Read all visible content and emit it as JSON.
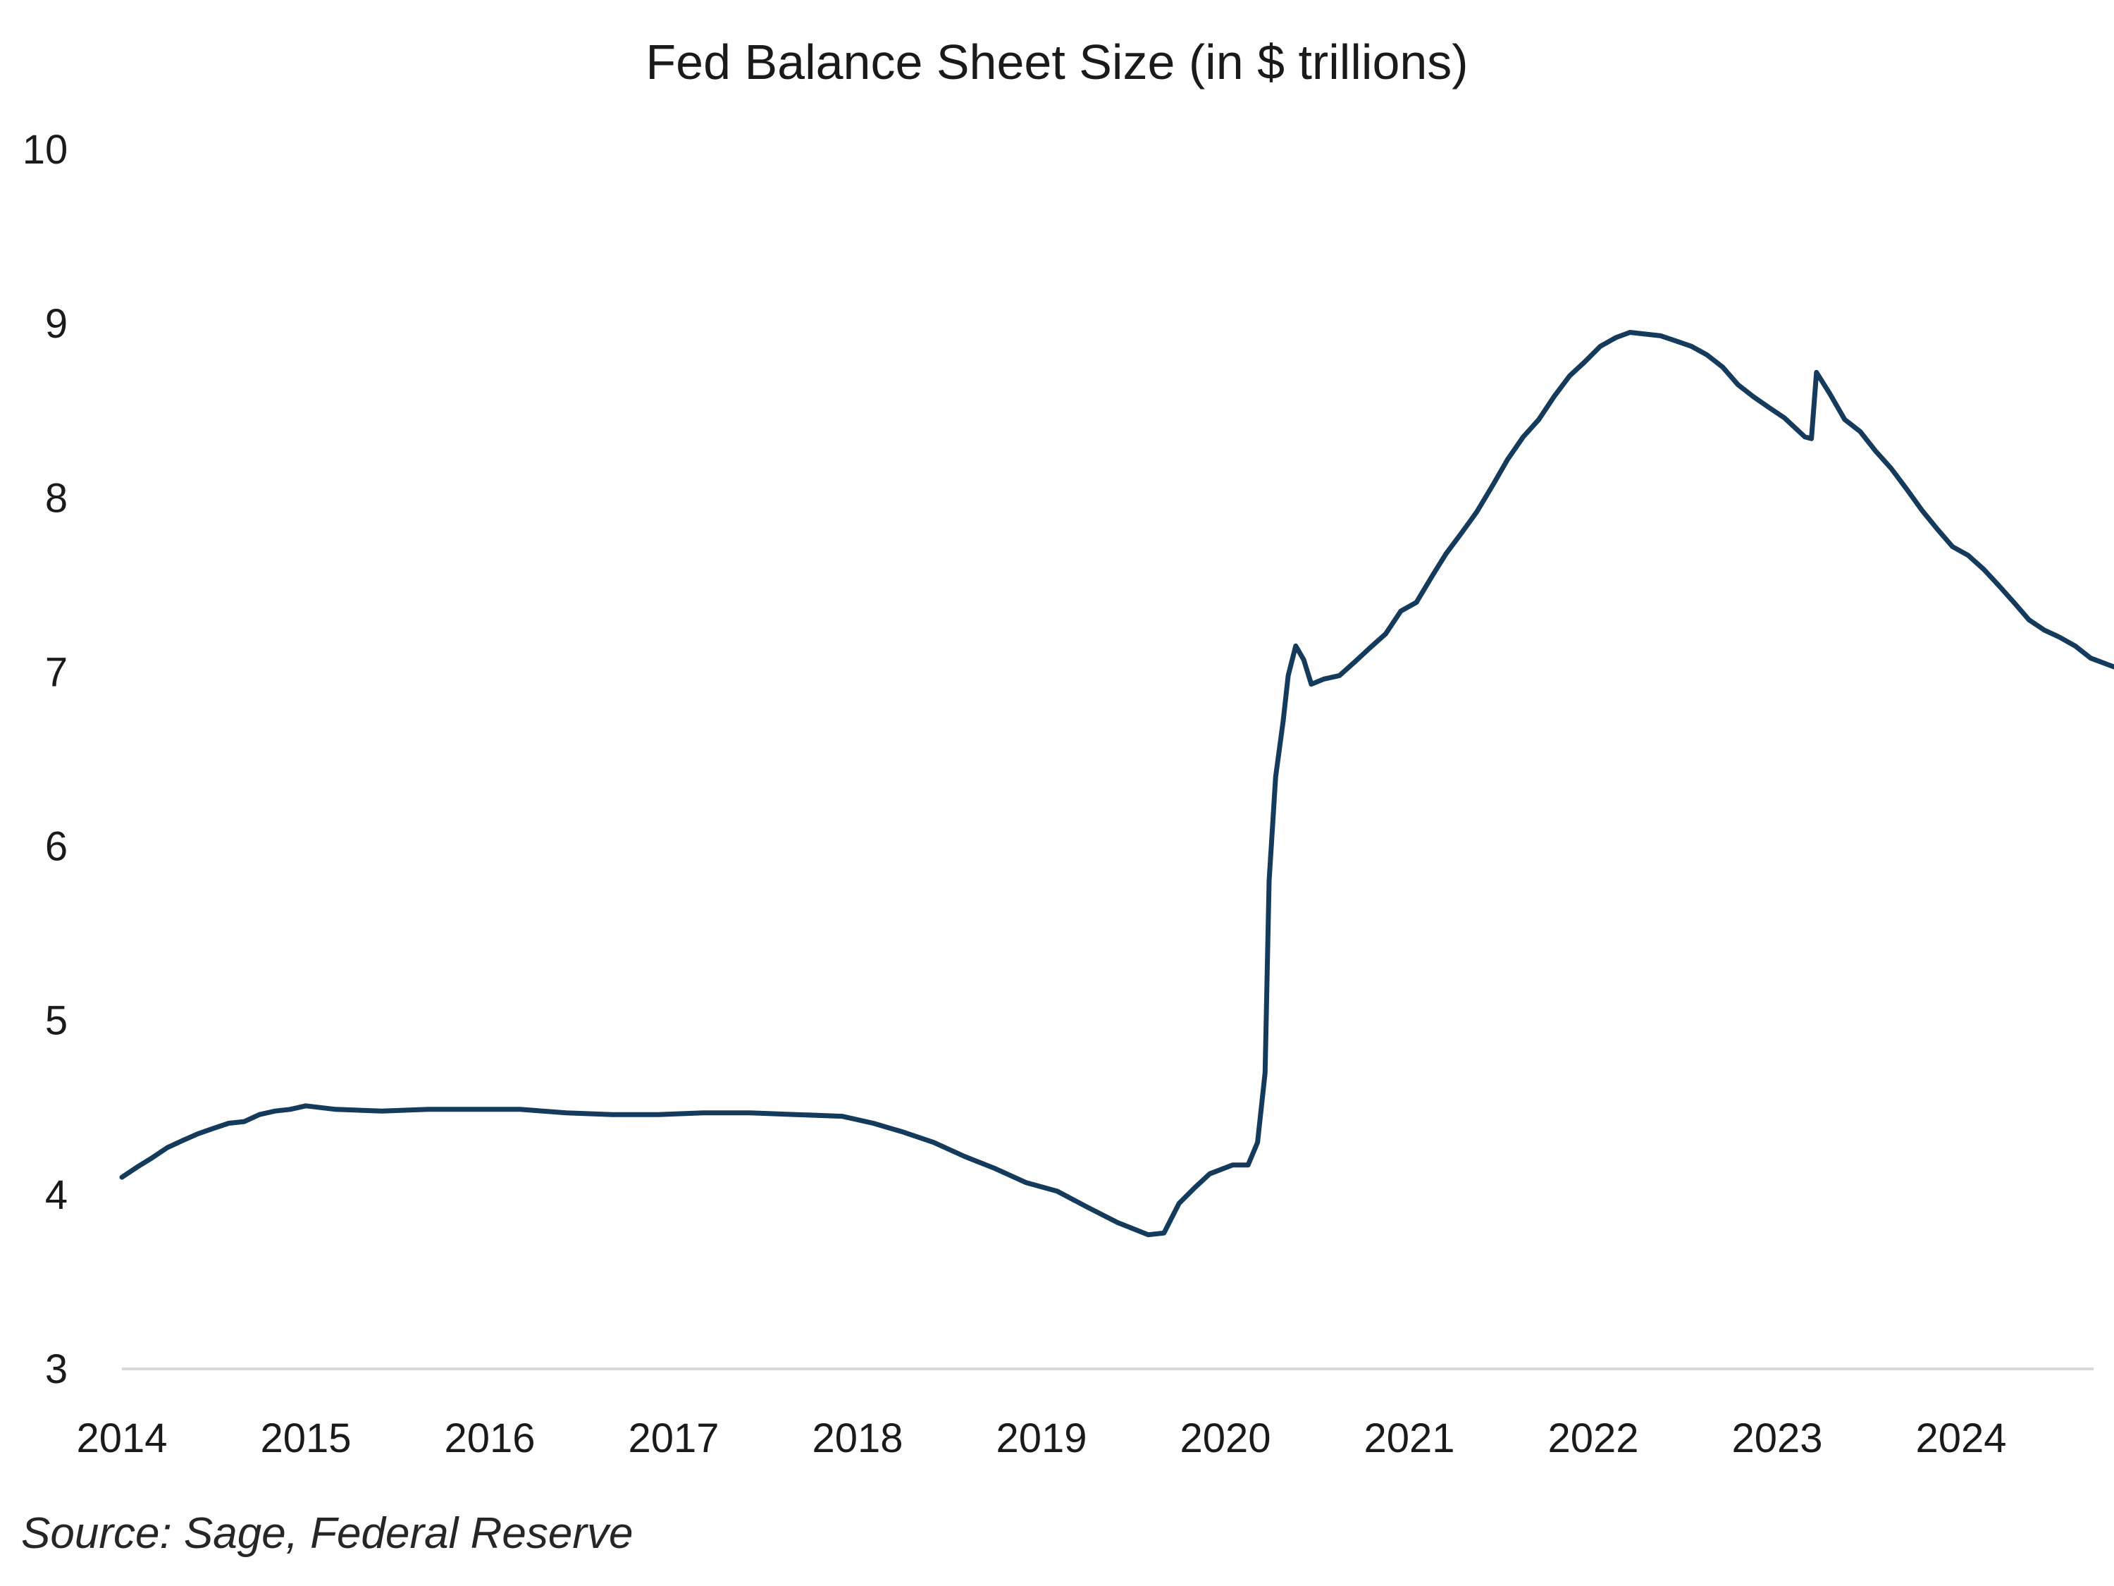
{
  "chart_data": {
    "type": "line",
    "title": "Fed Balance Sheet Size (in $ trillions)",
    "xlabel": "",
    "ylabel": "",
    "ylim": [
      3,
      10
    ],
    "yticks": [
      "3",
      "4",
      "5",
      "6",
      "7",
      "8",
      "9",
      "10"
    ],
    "xlim": [
      "2014-01-01",
      "2024-10-31"
    ],
    "xticks": [
      "2014",
      "2015",
      "2016",
      "2017",
      "2018",
      "2019",
      "2020",
      "2021",
      "2022",
      "2023",
      "2024"
    ],
    "grid": false,
    "color": "#143A5C",
    "series": [
      {
        "points": [
          [
            "2014-01-01",
            4.1
          ],
          [
            "2014-02-01",
            4.16
          ],
          [
            "2014-03-01",
            4.21
          ],
          [
            "2014-04-01",
            4.27
          ],
          [
            "2014-05-01",
            4.31
          ],
          [
            "2014-06-01",
            4.35
          ],
          [
            "2014-07-01",
            4.38
          ],
          [
            "2014-08-01",
            4.41
          ],
          [
            "2014-09-01",
            4.42
          ],
          [
            "2014-10-01",
            4.46
          ],
          [
            "2014-11-01",
            4.48
          ],
          [
            "2014-12-01",
            4.49
          ],
          [
            "2015-01-01",
            4.51
          ],
          [
            "2015-03-01",
            4.49
          ],
          [
            "2015-06-01",
            4.48
          ],
          [
            "2015-09-01",
            4.49
          ],
          [
            "2015-12-01",
            4.49
          ],
          [
            "2016-03-01",
            4.49
          ],
          [
            "2016-06-01",
            4.47
          ],
          [
            "2016-09-01",
            4.46
          ],
          [
            "2016-12-01",
            4.46
          ],
          [
            "2017-03-01",
            4.47
          ],
          [
            "2017-06-01",
            4.47
          ],
          [
            "2017-09-01",
            4.46
          ],
          [
            "2017-12-01",
            4.45
          ],
          [
            "2018-02-01",
            4.41
          ],
          [
            "2018-04-01",
            4.36
          ],
          [
            "2018-06-01",
            4.3
          ],
          [
            "2018-08-01",
            4.22
          ],
          [
            "2018-10-01",
            4.15
          ],
          [
            "2018-12-01",
            4.07
          ],
          [
            "2019-02-01",
            4.02
          ],
          [
            "2019-04-01",
            3.93
          ],
          [
            "2019-06-01",
            3.84
          ],
          [
            "2019-08-01",
            3.77
          ],
          [
            "2019-09-01",
            3.78
          ],
          [
            "2019-10-01",
            3.95
          ],
          [
            "2019-11-01",
            4.04
          ],
          [
            "2019-12-01",
            4.12
          ],
          [
            "2020-01-15",
            4.17
          ],
          [
            "2020-02-15",
            4.17
          ],
          [
            "2020-03-05",
            4.3
          ],
          [
            "2020-03-20",
            4.7
          ],
          [
            "2020-03-28",
            5.8
          ],
          [
            "2020-04-10",
            6.4
          ],
          [
            "2020-04-25",
            6.72
          ],
          [
            "2020-05-05",
            6.98
          ],
          [
            "2020-05-20",
            7.15
          ],
          [
            "2020-06-05",
            7.07
          ],
          [
            "2020-06-20",
            6.93
          ],
          [
            "2020-07-15",
            6.96
          ],
          [
            "2020-08-15",
            6.98
          ],
          [
            "2020-09-15",
            7.06
          ],
          [
            "2020-10-15",
            7.14
          ],
          [
            "2020-11-15",
            7.22
          ],
          [
            "2020-12-15",
            7.35
          ],
          [
            "2021-01-15",
            7.4
          ],
          [
            "2021-02-15",
            7.55
          ],
          [
            "2021-03-15",
            7.68
          ],
          [
            "2021-04-15",
            7.8
          ],
          [
            "2021-05-15",
            7.92
          ],
          [
            "2021-06-15",
            8.07
          ],
          [
            "2021-07-15",
            8.22
          ],
          [
            "2021-08-15",
            8.35
          ],
          [
            "2021-09-15",
            8.45
          ],
          [
            "2021-10-15",
            8.58
          ],
          [
            "2021-11-15",
            8.7
          ],
          [
            "2021-12-15",
            8.78
          ],
          [
            "2022-01-15",
            8.87
          ],
          [
            "2022-02-15",
            8.92
          ],
          [
            "2022-03-15",
            8.95
          ],
          [
            "2022-04-15",
            8.94
          ],
          [
            "2022-05-15",
            8.93
          ],
          [
            "2022-06-15",
            8.9
          ],
          [
            "2022-07-15",
            8.87
          ],
          [
            "2022-08-15",
            8.82
          ],
          [
            "2022-09-15",
            8.75
          ],
          [
            "2022-10-15",
            8.65
          ],
          [
            "2022-11-15",
            8.58
          ],
          [
            "2022-12-15",
            8.52
          ],
          [
            "2023-01-15",
            8.46
          ],
          [
            "2023-02-25",
            8.35
          ],
          [
            "2023-03-10",
            8.34
          ],
          [
            "2023-03-20",
            8.72
          ],
          [
            "2023-04-15",
            8.6
          ],
          [
            "2023-05-15",
            8.45
          ],
          [
            "2023-06-15",
            8.38
          ],
          [
            "2023-07-15",
            8.27
          ],
          [
            "2023-08-15",
            8.17
          ],
          [
            "2023-09-15",
            8.05
          ],
          [
            "2023-10-15",
            7.93
          ],
          [
            "2023-11-15",
            7.82
          ],
          [
            "2023-12-15",
            7.72
          ],
          [
            "2024-01-15",
            7.67
          ],
          [
            "2024-02-15",
            7.59
          ],
          [
            "2024-03-15",
            7.5
          ],
          [
            "2024-04-15",
            7.4
          ],
          [
            "2024-05-15",
            7.3
          ],
          [
            "2024-06-15",
            7.24
          ],
          [
            "2024-07-15",
            7.2
          ],
          [
            "2024-08-15",
            7.15
          ],
          [
            "2024-09-15",
            7.08
          ],
          [
            "2024-10-31",
            7.03
          ]
        ]
      }
    ],
    "source": "Source: Sage, Federal Reserve"
  }
}
